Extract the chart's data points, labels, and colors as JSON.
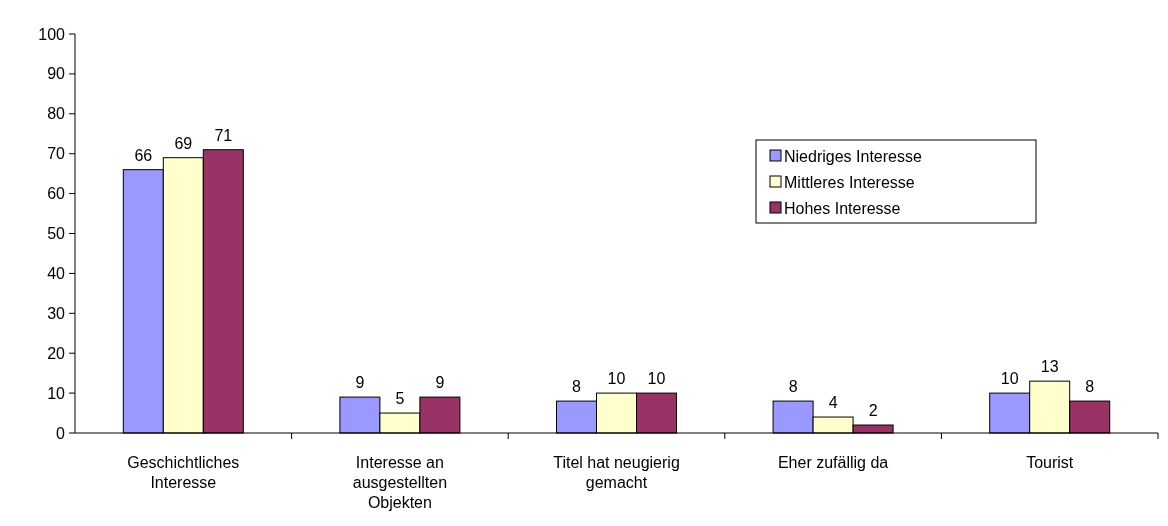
{
  "chart_data": {
    "type": "bar",
    "categories": [
      "Geschichtliches Interesse",
      "Interesse an ausgestellten Objekten",
      "Titel hat neugierig gemacht",
      "Eher zufällig da",
      "Tourist"
    ],
    "series": [
      {
        "name": "Niedriges Interesse",
        "color": "#9999ff",
        "values": [
          66,
          9,
          8,
          8,
          10
        ]
      },
      {
        "name": "Mittleres Interesse",
        "color": "#ffffcc",
        "values": [
          69,
          5,
          10,
          4,
          13
        ]
      },
      {
        "name": "Hohes Interesse",
        "color": "#993366",
        "values": [
          71,
          9,
          10,
          2,
          8
        ]
      }
    ],
    "ylim": [
      0,
      100
    ],
    "yticks": [
      0,
      10,
      20,
      30,
      40,
      50,
      60,
      70,
      80,
      90,
      100
    ],
    "data_labels": true,
    "legend": "top right",
    "grid": false
  }
}
